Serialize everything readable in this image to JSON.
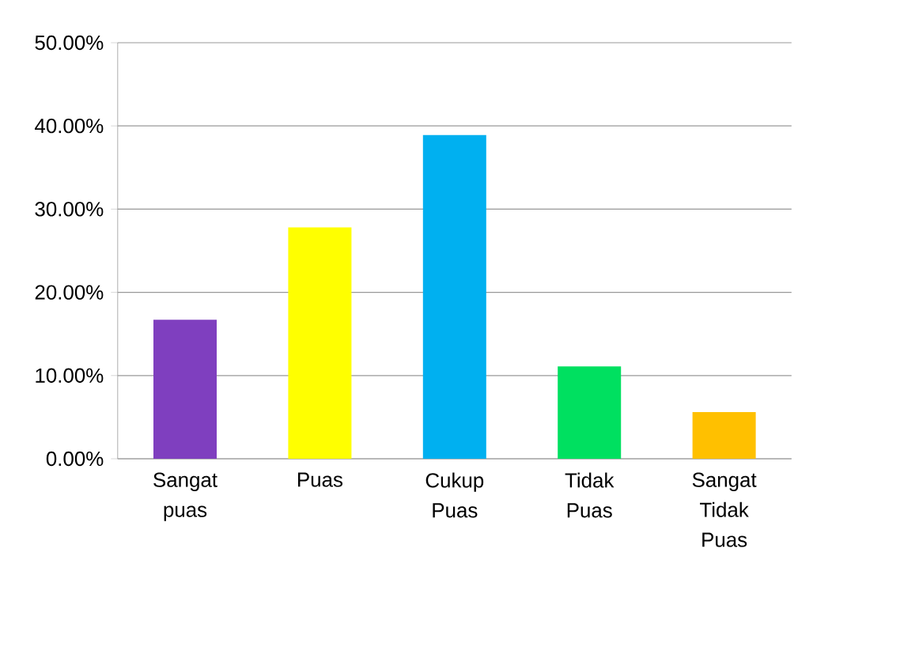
{
  "chart_data": {
    "type": "bar",
    "categories": [
      "Sangat puas",
      "Puas",
      "Cukup Puas",
      "Tidak Puas",
      "Sangat Tidak Puas"
    ],
    "values": [
      16.7,
      27.8,
      38.9,
      11.1,
      5.6
    ],
    "colors": [
      "#7f3fbf",
      "#ffff00",
      "#00b0f0",
      "#00e060",
      "#ffc000"
    ],
    "ylim": [
      0,
      50
    ],
    "yticks": [
      {
        "value": 0,
        "label": "0.00%"
      },
      {
        "value": 10,
        "label": "10.00%"
      },
      {
        "value": 20,
        "label": "20.00%"
      },
      {
        "value": 30,
        "label": "30.00%"
      },
      {
        "value": 40,
        "label": "40.00%"
      },
      {
        "value": 50,
        "label": "50.00%"
      }
    ],
    "grid": "y"
  }
}
